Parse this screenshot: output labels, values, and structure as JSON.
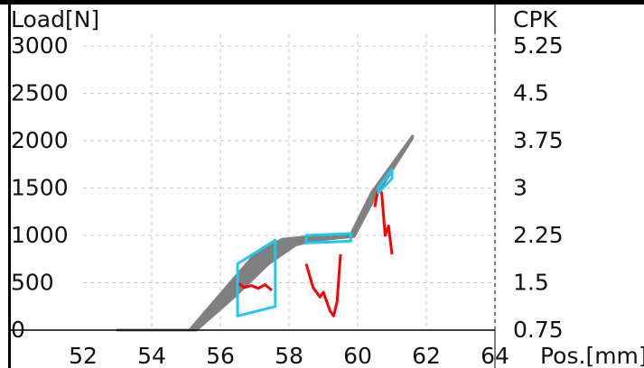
{
  "colors": {
    "background": "#ffffff",
    "frame": "#000000",
    "grid": "#c8c8c8",
    "reference_curve": "#808080",
    "measured_curve": "#ff0000",
    "window_box": "#1ec8f0",
    "text": "#111111"
  },
  "chart_data": {
    "type": "line",
    "title": "",
    "xlabel": "Pos.[mm]",
    "ylabel": "Load[N]",
    "y2label": "CPK",
    "xlim": [
      52,
      64
    ],
    "ylim": [
      0,
      3200
    ],
    "y2lim": [
      0.75,
      5.55
    ],
    "x_ticks": [
      "52",
      "54",
      "56",
      "58",
      "60",
      "62",
      "64"
    ],
    "y_ticks": [
      "0",
      "500",
      "1000",
      "1500",
      "2000",
      "2500",
      "3000"
    ],
    "y2_ticks": [
      "0.75",
      "1.5",
      "2.25",
      "3",
      "3.75",
      "4.5",
      "5.25"
    ],
    "grid": true,
    "series": [
      {
        "kind": "envelope",
        "upper": [
          [
            53.0,
            0
          ],
          [
            55.1,
            0
          ],
          [
            56.0,
            380
          ],
          [
            57.0,
            800
          ],
          [
            57.8,
            960
          ],
          [
            58.5,
            985
          ],
          [
            59.8,
            1010
          ],
          [
            60.4,
            1450
          ],
          [
            61.6,
            2050
          ]
        ],
        "lower": [
          [
            53.0,
            0
          ],
          [
            55.3,
            0
          ],
          [
            56.4,
            350
          ],
          [
            57.4,
            700
          ],
          [
            58.2,
            900
          ],
          [
            58.8,
            950
          ],
          [
            59.9,
            990
          ],
          [
            60.5,
            1400
          ],
          [
            61.6,
            2030
          ]
        ]
      },
      {
        "kind": "measured",
        "segments": [
          [
            [
              56.5,
              500
            ],
            [
              56.7,
              450
            ],
            [
              56.9,
              470
            ],
            [
              57.1,
              440
            ],
            [
              57.3,
              480
            ],
            [
              57.5,
              420
            ]
          ],
          [
            [
              58.5,
              700
            ],
            [
              58.7,
              450
            ],
            [
              58.9,
              350
            ],
            [
              59.0,
              400
            ],
            [
              59.1,
              300
            ],
            [
              59.2,
              200
            ],
            [
              59.3,
              150
            ],
            [
              59.4,
              300
            ],
            [
              59.5,
              800
            ]
          ],
          [
            [
              60.5,
              1300
            ],
            [
              60.6,
              1500
            ],
            [
              60.7,
              1450
            ],
            [
              60.8,
              1000
            ],
            [
              60.9,
              1100
            ],
            [
              61.0,
              800
            ]
          ]
        ]
      }
    ],
    "windows": [
      {
        "corners": [
          [
            56.5,
            700
          ],
          [
            57.6,
            950
          ],
          [
            57.6,
            250
          ],
          [
            56.5,
            150
          ]
        ]
      },
      {
        "corners": [
          [
            58.5,
            1000
          ],
          [
            59.8,
            1020
          ],
          [
            59.8,
            940
          ],
          [
            58.5,
            920
          ]
        ]
      },
      {
        "corners": [
          [
            60.6,
            1500
          ],
          [
            61.0,
            1700
          ],
          [
            61.0,
            1600
          ],
          [
            60.6,
            1450
          ]
        ]
      }
    ]
  }
}
